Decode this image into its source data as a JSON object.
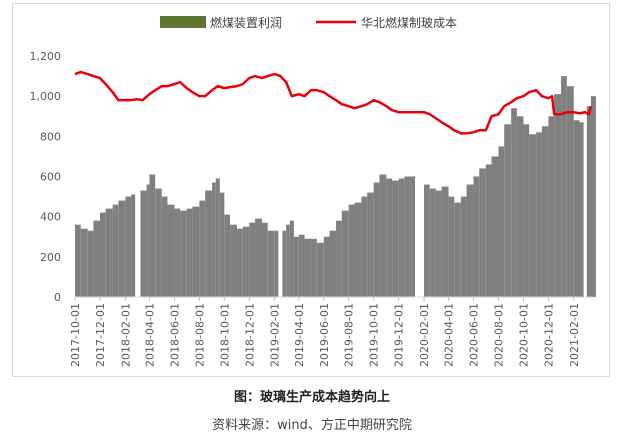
{
  "chart_data": {
    "type": "bar+line",
    "title": "",
    "ylim": [
      0,
      1200
    ],
    "y_ticks": [
      "0",
      "200",
      "400",
      "600",
      "800",
      "1,000",
      "1,200"
    ],
    "x_labels": [
      "2017-10-01",
      "2017-12-01",
      "2018-02-01",
      "2018-04-01",
      "2018-06-01",
      "2018-08-01",
      "2018-10-01",
      "2018-12-01",
      "2019-02-01",
      "2019-04-01",
      "2019-06-01",
      "2019-08-01",
      "2019-10-01",
      "2019-12-01",
      "2020-02-01",
      "2020-04-01",
      "2020-06-01",
      "2020-08-01",
      "2020-10-01",
      "2020-12-01",
      "2021-02-01"
    ],
    "grid": false,
    "legend_position": "top",
    "series": [
      {
        "name": "燃煤装置利润",
        "kind": "bar",
        "color": "#808080",
        "legend_color": "#5f7530",
        "points": [
          [
            "2017-10-01",
            360
          ],
          [
            "2017-10-15",
            340
          ],
          [
            "2017-11-01",
            330
          ],
          [
            "2017-11-15",
            380
          ],
          [
            "2017-12-01",
            420
          ],
          [
            "2017-12-15",
            440
          ],
          [
            "2018-01-01",
            460
          ],
          [
            "2018-01-15",
            480
          ],
          [
            "2018-02-01",
            500
          ],
          [
            "2018-02-15",
            510
          ],
          [
            "2018-02-25",
            null
          ],
          [
            "2018-03-10",
            530
          ],
          [
            "2018-03-25",
            560
          ],
          [
            "2018-04-01",
            610
          ],
          [
            "2018-04-15",
            540
          ],
          [
            "2018-05-01",
            500
          ],
          [
            "2018-05-15",
            460
          ],
          [
            "2018-06-01",
            440
          ],
          [
            "2018-06-15",
            430
          ],
          [
            "2018-07-01",
            440
          ],
          [
            "2018-07-15",
            450
          ],
          [
            "2018-08-01",
            480
          ],
          [
            "2018-08-15",
            530
          ],
          [
            "2018-09-01",
            570
          ],
          [
            "2018-09-10",
            590
          ],
          [
            "2018-09-20",
            520
          ],
          [
            "2018-10-01",
            410
          ],
          [
            "2018-10-15",
            360
          ],
          [
            "2018-11-01",
            340
          ],
          [
            "2018-11-15",
            350
          ],
          [
            "2018-12-01",
            370
          ],
          [
            "2018-12-15",
            390
          ],
          [
            "2019-01-01",
            370
          ],
          [
            "2019-01-15",
            330
          ],
          [
            "2019-02-01",
            330
          ],
          [
            "2019-02-10",
            null
          ],
          [
            "2019-02-20",
            330
          ],
          [
            "2019-03-01",
            360
          ],
          [
            "2019-03-10",
            380
          ],
          [
            "2019-03-20",
            300
          ],
          [
            "2019-04-01",
            310
          ],
          [
            "2019-04-15",
            290
          ],
          [
            "2019-05-01",
            290
          ],
          [
            "2019-05-15",
            270
          ],
          [
            "2019-06-01",
            300
          ],
          [
            "2019-06-15",
            330
          ],
          [
            "2019-07-01",
            380
          ],
          [
            "2019-07-15",
            430
          ],
          [
            "2019-08-01",
            460
          ],
          [
            "2019-08-15",
            470
          ],
          [
            "2019-09-01",
            500
          ],
          [
            "2019-09-15",
            520
          ],
          [
            "2019-10-01",
            570
          ],
          [
            "2019-10-15",
            610
          ],
          [
            "2019-11-01",
            590
          ],
          [
            "2019-11-15",
            580
          ],
          [
            "2019-12-01",
            590
          ],
          [
            "2019-12-15",
            600
          ],
          [
            "2020-01-01",
            600
          ],
          [
            "2020-01-10",
            null
          ],
          [
            "2020-01-20",
            null
          ],
          [
            "2020-02-01",
            560
          ],
          [
            "2020-02-15",
            540
          ],
          [
            "2020-03-01",
            530
          ],
          [
            "2020-03-15",
            550
          ],
          [
            "2020-04-01",
            500
          ],
          [
            "2020-04-15",
            470
          ],
          [
            "2020-05-01",
            500
          ],
          [
            "2020-05-15",
            560
          ],
          [
            "2020-06-01",
            600
          ],
          [
            "2020-06-15",
            640
          ],
          [
            "2020-07-01",
            660
          ],
          [
            "2020-07-15",
            700
          ],
          [
            "2020-08-01",
            750
          ],
          [
            "2020-08-15",
            860
          ],
          [
            "2020-09-01",
            940
          ],
          [
            "2020-09-15",
            900
          ],
          [
            "2020-10-01",
            860
          ],
          [
            "2020-10-15",
            810
          ],
          [
            "2020-11-01",
            820
          ],
          [
            "2020-11-15",
            850
          ],
          [
            "2020-12-01",
            900
          ],
          [
            "2020-12-15",
            1010
          ],
          [
            "2021-01-01",
            1100
          ],
          [
            "2021-01-15",
            1050
          ],
          [
            "2021-02-01",
            880
          ],
          [
            "2021-02-15",
            870
          ],
          [
            "2021-02-25",
            null
          ],
          [
            "2021-03-05",
            950
          ],
          [
            "2021-03-15",
            1000
          ]
        ]
      },
      {
        "name": "华北燃煤制玻成本",
        "kind": "line",
        "color": "#e8000b",
        "points": [
          [
            "2017-10-01",
            1110
          ],
          [
            "2017-10-15",
            1120
          ],
          [
            "2017-11-01",
            1110
          ],
          [
            "2017-11-15",
            1100
          ],
          [
            "2017-12-01",
            1090
          ],
          [
            "2017-12-15",
            1060
          ],
          [
            "2018-01-01",
            1020
          ],
          [
            "2018-01-15",
            980
          ],
          [
            "2018-02-01",
            980
          ],
          [
            "2018-02-15",
            980
          ],
          [
            "2018-03-01",
            985
          ],
          [
            "2018-03-15",
            980
          ],
          [
            "2018-04-01",
            1010
          ],
          [
            "2018-04-15",
            1030
          ],
          [
            "2018-05-01",
            1050
          ],
          [
            "2018-05-15",
            1050
          ],
          [
            "2018-06-01",
            1060
          ],
          [
            "2018-06-15",
            1070
          ],
          [
            "2018-07-01",
            1040
          ],
          [
            "2018-07-15",
            1020
          ],
          [
            "2018-08-01",
            1000
          ],
          [
            "2018-08-15",
            1000
          ],
          [
            "2018-09-01",
            1030
          ],
          [
            "2018-09-15",
            1050
          ],
          [
            "2018-10-01",
            1040
          ],
          [
            "2018-10-15",
            1045
          ],
          [
            "2018-11-01",
            1050
          ],
          [
            "2018-11-15",
            1060
          ],
          [
            "2018-12-01",
            1090
          ],
          [
            "2018-12-15",
            1100
          ],
          [
            "2019-01-01",
            1090
          ],
          [
            "2019-01-15",
            1100
          ],
          [
            "2019-02-01",
            1110
          ],
          [
            "2019-02-15",
            1100
          ],
          [
            "2019-03-01",
            1070
          ],
          [
            "2019-03-15",
            1000
          ],
          [
            "2019-04-01",
            1010
          ],
          [
            "2019-04-15",
            1000
          ],
          [
            "2019-05-01",
            1030
          ],
          [
            "2019-05-15",
            1030
          ],
          [
            "2019-06-01",
            1020
          ],
          [
            "2019-06-15",
            1000
          ],
          [
            "2019-07-01",
            980
          ],
          [
            "2019-07-15",
            960
          ],
          [
            "2019-08-01",
            950
          ],
          [
            "2019-08-15",
            940
          ],
          [
            "2019-09-01",
            950
          ],
          [
            "2019-09-15",
            960
          ],
          [
            "2019-10-01",
            980
          ],
          [
            "2019-10-15",
            970
          ],
          [
            "2019-11-01",
            950
          ],
          [
            "2019-11-15",
            930
          ],
          [
            "2019-12-01",
            920
          ],
          [
            "2019-12-15",
            920
          ],
          [
            "2020-01-01",
            920
          ],
          [
            "2020-01-15",
            920
          ],
          [
            "2020-02-01",
            920
          ],
          [
            "2020-02-15",
            910
          ],
          [
            "2020-03-01",
            890
          ],
          [
            "2020-03-15",
            870
          ],
          [
            "2020-04-01",
            850
          ],
          [
            "2020-04-15",
            830
          ],
          [
            "2020-05-01",
            815
          ],
          [
            "2020-05-15",
            815
          ],
          [
            "2020-06-01",
            820
          ],
          [
            "2020-06-15",
            830
          ],
          [
            "2020-07-01",
            830
          ],
          [
            "2020-07-15",
            900
          ],
          [
            "2020-08-01",
            910
          ],
          [
            "2020-08-15",
            950
          ],
          [
            "2020-09-01",
            970
          ],
          [
            "2020-09-15",
            990
          ],
          [
            "2020-10-01",
            1000
          ],
          [
            "2020-10-15",
            1020
          ],
          [
            "2020-11-01",
            1030
          ],
          [
            "2020-11-15",
            1000
          ],
          [
            "2020-12-01",
            990
          ],
          [
            "2020-12-10",
            1000
          ],
          [
            "2020-12-15",
            910
          ],
          [
            "2021-01-01",
            910
          ],
          [
            "2021-01-15",
            920
          ],
          [
            "2021-02-01",
            920
          ],
          [
            "2021-02-15",
            915
          ],
          [
            "2021-03-01",
            920
          ],
          [
            "2021-03-10",
            910
          ],
          [
            "2021-03-15",
            950
          ]
        ]
      }
    ]
  },
  "caption": "图：玻璃生产成本趋势向上",
  "source": "资料来源：wind、方正中期研究院"
}
